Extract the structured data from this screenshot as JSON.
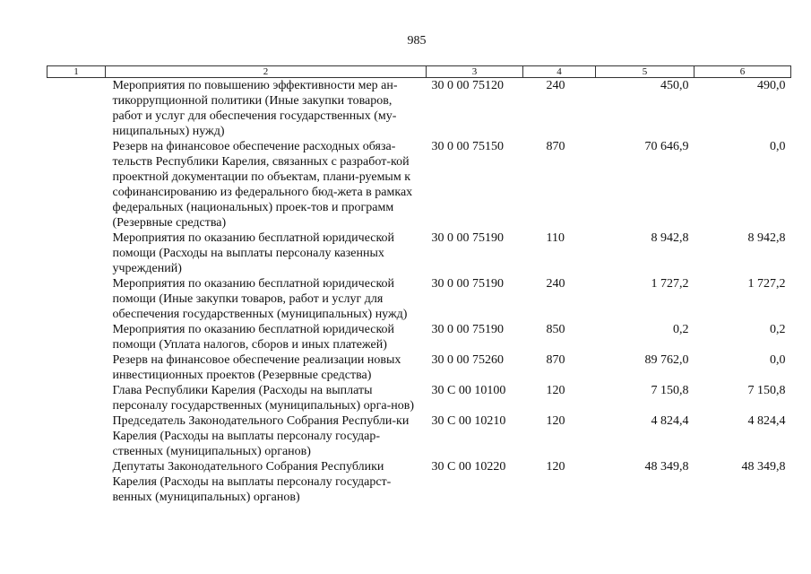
{
  "page_number": "985",
  "headers": [
    "1",
    "2",
    "3",
    "4",
    "5",
    "6"
  ],
  "rows": [
    {
      "name": "Мероприятия по повышению эффективности мер ан-тикоррупционной политики (Иные закупки товаров, работ и услуг для обеспечения государственных (му-ниципальных) нужд)",
      "code": "30 0 00 75120",
      "vr": "240",
      "v1": "450,0",
      "v2": "490,0"
    },
    {
      "name": "Резерв на финансовое обеспечение расходных обяза-тельств Республики Карелия, связанных с разработ-кой проектной документации по объектам, плани-руемым к софинансированию из федерального бюд-жета в рамках федеральных (национальных) проек-тов и программ (Резервные средства)",
      "code": "30 0 00 75150",
      "vr": "870",
      "v1": "70 646,9",
      "v2": "0,0"
    },
    {
      "name": "Мероприятия по оказанию бесплатной юридической помощи (Расходы на выплаты персоналу казенных учреждений)",
      "code": "30 0 00 75190",
      "vr": "110",
      "v1": "8 942,8",
      "v2": "8 942,8"
    },
    {
      "name": "Мероприятия по оказанию бесплатной юридической помощи (Иные закупки товаров, работ и услуг для обеспечения государственных (муниципальных) нужд)",
      "code": "30 0 00 75190",
      "vr": "240",
      "v1": "1 727,2",
      "v2": "1 727,2"
    },
    {
      "name": "Мероприятия по оказанию бесплатной юридической помощи (Уплата налогов, сборов и иных платежей)",
      "code": "30 0 00 75190",
      "vr": "850",
      "v1": "0,2",
      "v2": "0,2"
    },
    {
      "name": "Резерв на финансовое обеспечение реализации новых инвестиционных проектов (Резервные средства)",
      "code": "30 0 00 75260",
      "vr": "870",
      "v1": "89 762,0",
      "v2": "0,0"
    },
    {
      "name": "Глава Республики Карелия (Расходы на выплаты персоналу государственных (муниципальных) орга-нов)",
      "code": "30 С 00 10100",
      "vr": "120",
      "v1": "7 150,8",
      "v2": "7 150,8"
    },
    {
      "name": "Председатель Законодательного Собрания Республи-ки Карелия (Расходы на выплаты персоналу государ-ственных (муниципальных) органов)",
      "code": "30 С 00 10210",
      "vr": "120",
      "v1": "4 824,4",
      "v2": "4 824,4"
    },
    {
      "name": "Депутаты Законодательного Собрания Республики Карелия (Расходы на выплаты персоналу государст-венных (муниципальных) органов)",
      "code": "30 С 00 10220",
      "vr": "120",
      "v1": "48 349,8",
      "v2": "48 349,8"
    }
  ]
}
